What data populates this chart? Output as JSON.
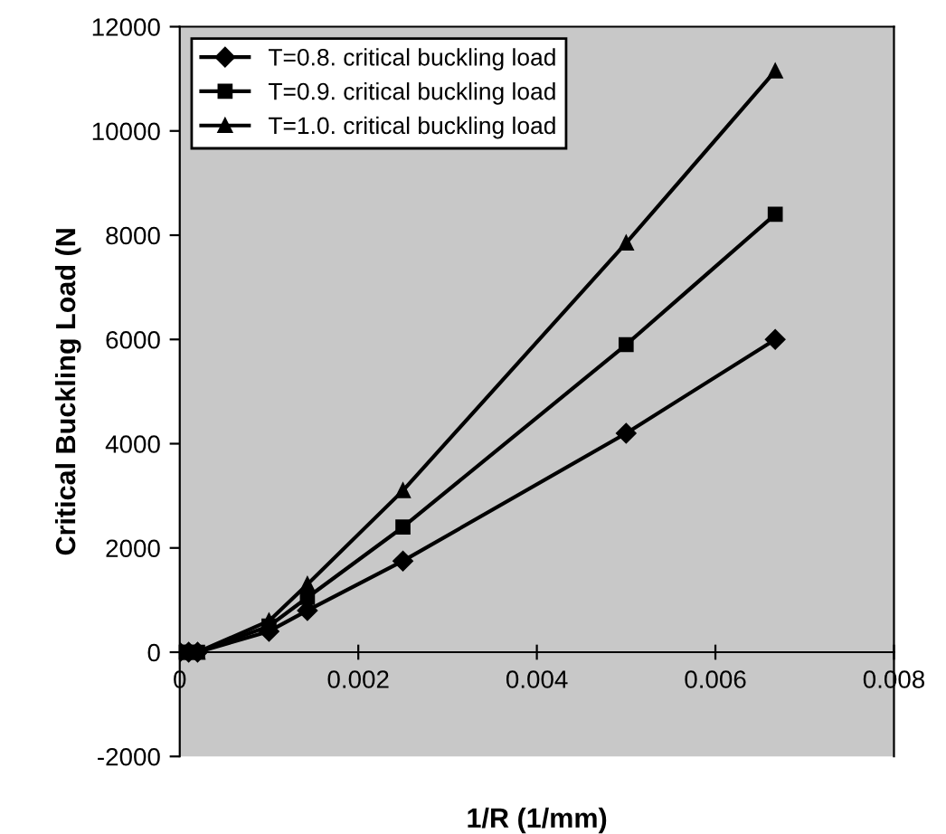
{
  "chart_data": {
    "type": "line",
    "xlabel": "1/R (1/mm)",
    "ylabel": "Critical Buckling Load (N",
    "x": [
      0,
      0.0001,
      0.0002,
      0.001,
      0.00143,
      0.0025,
      0.005,
      0.00667
    ],
    "series": [
      {
        "name": "T=0.8. critical buckling load",
        "color": "#000000",
        "marker": "diamond",
        "line_style": "solid",
        "values": [
          0,
          0,
          0,
          400,
          800,
          1750,
          4200,
          6000
        ]
      },
      {
        "name": "T=0.9. critical buckling load",
        "color": "#000000",
        "marker": "square",
        "line_style": "solid",
        "values": [
          0,
          0,
          0,
          500,
          1050,
          2400,
          5900,
          8400
        ]
      },
      {
        "name": "T=1.0. critical buckling load",
        "color": "#000000",
        "marker": "triangle",
        "line_style": "solid",
        "values": [
          0,
          0,
          0,
          600,
          1300,
          3100,
          7850,
          11150
        ]
      }
    ],
    "xlim": [
      0,
      0.008
    ],
    "xticks": [
      0,
      0.002,
      0.004,
      0.006,
      0.008
    ],
    "ylim": [
      -2000,
      12000
    ],
    "yticks": [
      -2000,
      0,
      2000,
      4000,
      6000,
      8000,
      10000,
      12000
    ],
    "grid": false,
    "legend": "top left"
  }
}
